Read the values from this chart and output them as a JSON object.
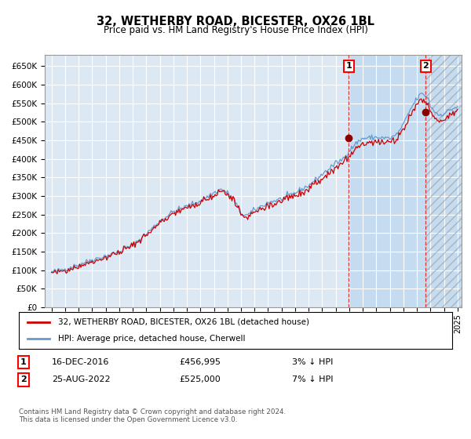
{
  "title": "32, WETHERBY ROAD, BICESTER, OX26 1BL",
  "subtitle": "Price paid vs. HM Land Registry's House Price Index (HPI)",
  "legend_label_red": "32, WETHERBY ROAD, BICESTER, OX26 1BL (detached house)",
  "legend_label_blue": "HPI: Average price, detached house, Cherwell",
  "annotation1_label": "1",
  "annotation1_date": "16-DEC-2016",
  "annotation1_price": "£456,995",
  "annotation1_pct": "3% ↓ HPI",
  "annotation1_year": 2016.96,
  "annotation1_value": 456995,
  "annotation2_label": "2",
  "annotation2_date": "25-AUG-2022",
  "annotation2_price": "£525,000",
  "annotation2_pct": "7% ↓ HPI",
  "annotation2_year": 2022.65,
  "annotation2_value": 525000,
  "footer": "Contains HM Land Registry data © Crown copyright and database right 2024.\nThis data is licensed under the Open Government Licence v3.0.",
  "ylim": [
    0,
    680000
  ],
  "yticks": [
    0,
    50000,
    100000,
    150000,
    200000,
    250000,
    300000,
    350000,
    400000,
    450000,
    500000,
    550000,
    600000,
    650000
  ],
  "xlim_start": 1994.5,
  "xlim_end": 2025.3,
  "background_color": "#ffffff",
  "plot_bg_color": "#dce9f5",
  "shade_color": "#c5dcf0",
  "grid_color": "#ffffff",
  "red_line_color": "#cc0000",
  "blue_line_color": "#6699cc",
  "marker_color": "#880000",
  "dashed_line_color": "#dd3333",
  "hatch_color": "#aaaaaa"
}
